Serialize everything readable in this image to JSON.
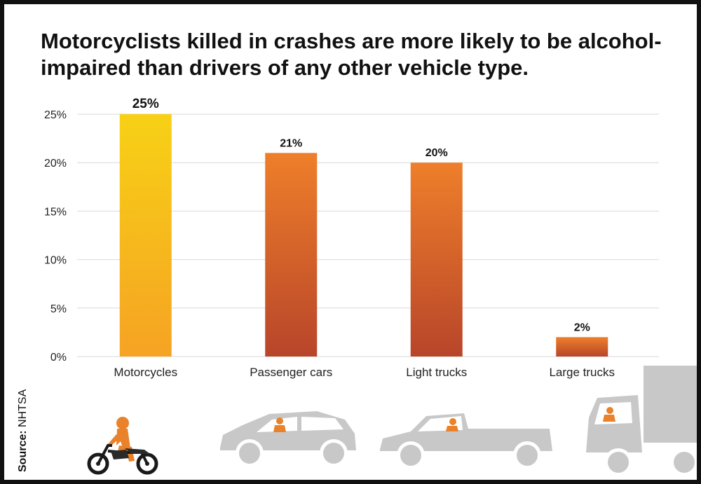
{
  "title": "Motorcyclists killed in crashes are more likely to be alcohol-impaired than drivers of any other vehicle type.",
  "source_label": "Source:",
  "source_value": "NHTSA",
  "colors": {
    "highlight_top": "#F7D116",
    "highlight_bottom": "#F6A323",
    "bar_top": "#EE7F2A",
    "bar_bottom": "#B8452A",
    "grid": "#D9D9D9",
    "vehicle_gray": "#C8C8C8",
    "person_orange": "#E9822A"
  },
  "icons": [
    "motorcycle-rider-icon",
    "passenger-car-icon",
    "light-truck-icon",
    "large-truck-icon"
  ],
  "chart_data": {
    "type": "bar",
    "title": "Motorcyclists killed in crashes are more likely to be alcohol-impaired than drivers of any other vehicle type.",
    "categories": [
      "Motorcycles",
      "Passenger cars",
      "Light trucks",
      "Large trucks"
    ],
    "values": [
      25,
      21,
      20,
      2
    ],
    "data_labels": [
      "25%",
      "21%",
      "20%",
      "2%"
    ],
    "ylim": [
      0,
      25
    ],
    "yticks": [
      0,
      5,
      10,
      15,
      20,
      25
    ],
    "ytick_labels": [
      "0%",
      "5%",
      "10%",
      "15%",
      "20%",
      "25%"
    ],
    "xlabel": "",
    "ylabel": "",
    "grid": true,
    "highlight_index": 0
  }
}
